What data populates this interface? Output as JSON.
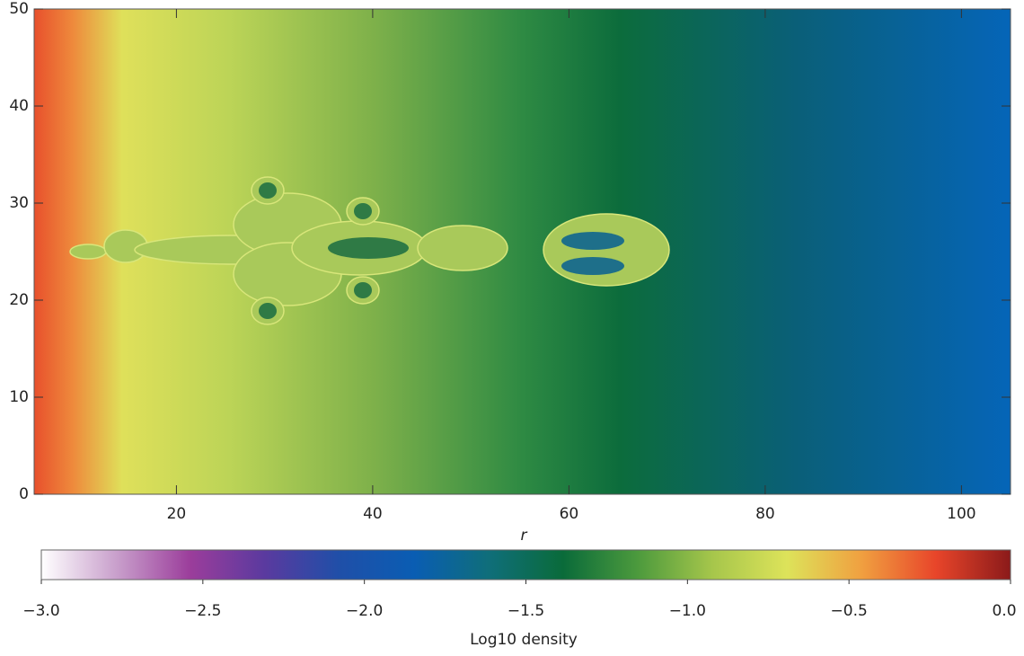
{
  "chart_data": {
    "type": "image",
    "xlabel": "r",
    "xlim": [
      5.5,
      105
    ],
    "xticks": [
      20,
      40,
      60,
      80,
      100
    ],
    "ylim": [
      0,
      50
    ],
    "yticks": [
      0,
      10,
      20,
      30,
      40,
      50
    ],
    "colorbar": {
      "label": "Log10 density",
      "lim": [
        -3,
        0
      ],
      "ticks": [
        {
          "value": -3,
          "label": "−3.0"
        },
        {
          "value": -2.5,
          "label": "−2.5"
        },
        {
          "value": -2,
          "label": "−2.0"
        },
        {
          "value": -1.5,
          "label": "−1.5"
        },
        {
          "value": -1,
          "label": "−1.0"
        },
        {
          "value": -0.5,
          "label": "−0.5"
        },
        {
          "value": 0,
          "label": "0.0"
        }
      ],
      "colors": [
        "#ffffff",
        "#c9a0cc",
        "#9b3d9b",
        "#5a3a9f",
        "#1f4fa8",
        "#0a5db3",
        "#0f6e7a",
        "#0a6b3a",
        "#4c9a3d",
        "#a6c64b",
        "#dde35a",
        "#f0a040",
        "#e8452a",
        "#8b1a1a"
      ]
    }
  }
}
